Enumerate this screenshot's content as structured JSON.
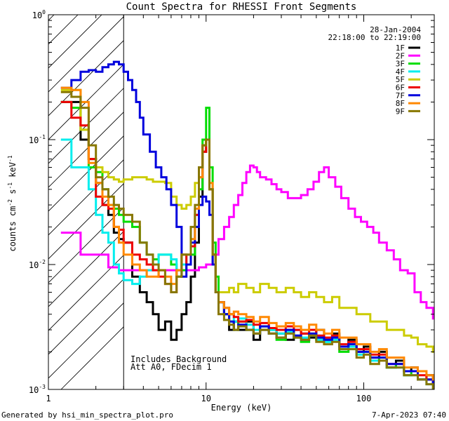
{
  "chart_data": {
    "type": "line",
    "title": "Count Spectra for RHESSI Front Segments",
    "xlabel": "Energy (keV)",
    "ylabel_base": "counts cm",
    "ylabel_exp1": "-2",
    "ylabel_mid": " s",
    "ylabel_exp2": "-1",
    "ylabel_end": " keV",
    "ylabel_exp3": "-1",
    "x_scale": "log",
    "y_scale": "log",
    "xlim": [
      1,
      280
    ],
    "ylim": [
      0.001,
      1
    ],
    "x_ticks": [
      {
        "value": 1,
        "label": "1"
      },
      {
        "value": 10,
        "label": "10"
      },
      {
        "value": 100,
        "label": "100"
      }
    ],
    "y_ticks": [
      {
        "value": 1,
        "base": "10",
        "exp": "0"
      },
      {
        "value": 0.1,
        "base": "10",
        "exp": "-1"
      },
      {
        "value": 0.01,
        "base": "10",
        "exp": "-2"
      },
      {
        "value": 0.001,
        "base": "10",
        "exp": "-3"
      }
    ],
    "date": "28-Jan-2004",
    "time_range": "22:18:00 to 22:19:00",
    "annotation_lines": [
      "Includes Background",
      "Att A0, FDecim 1"
    ],
    "hatched_region_xmax": 3,
    "footer_left": "Generated by hsi_min_spectra_plot.pro",
    "footer_right": "7-Apr-2023 07:40",
    "legend_position": "top-right",
    "series": [
      {
        "name": "1F",
        "color": "#000000",
        "x": [
          1.2,
          1.4,
          1.6,
          1.8,
          2.0,
          2.2,
          2.4,
          2.6,
          2.8,
          3.0,
          3.4,
          3.8,
          4.2,
          4.6,
          5.0,
          5.5,
          6.0,
          6.5,
          7.0,
          7.5,
          8.0,
          8.5,
          9.0,
          9.5,
          10.0,
          10.5,
          11.0,
          11.5,
          12,
          13,
          14,
          15,
          16,
          18,
          20,
          22,
          25,
          28,
          32,
          36,
          40,
          45,
          50,
          56,
          63,
          70,
          80,
          90,
          100,
          110,
          125,
          140,
          160,
          180,
          200,
          220,
          250,
          275
        ],
        "y": [
          0.2,
          0.2,
          0.1,
          0.07,
          0.045,
          0.03,
          0.025,
          0.018,
          0.016,
          0.015,
          0.008,
          0.006,
          0.005,
          0.004,
          0.003,
          0.0035,
          0.0025,
          0.003,
          0.004,
          0.005,
          0.008,
          0.015,
          0.035,
          0.08,
          0.1,
          0.04,
          0.012,
          0.006,
          0.005,
          0.004,
          0.003,
          0.0035,
          0.003,
          0.0035,
          0.0025,
          0.003,
          0.003,
          0.0028,
          0.0025,
          0.003,
          0.0028,
          0.0026,
          0.003,
          0.0025,
          0.0028,
          0.0022,
          0.0025,
          0.002,
          0.0022,
          0.0018,
          0.002,
          0.0015,
          0.0017,
          0.0014,
          0.0015,
          0.0012,
          0.0013,
          0.0011
        ]
      },
      {
        "name": "2F",
        "color": "#ff00ff",
        "x": [
          1.2,
          1.4,
          1.6,
          1.8,
          2.0,
          2.2,
          2.4,
          2.6,
          2.8,
          3.0,
          3.5,
          4.0,
          5.0,
          6.0,
          7.0,
          8.0,
          9.0,
          10.0,
          11.0,
          12.0,
          13.0,
          14.0,
          15.0,
          16.0,
          17.0,
          18.0,
          19.0,
          20.0,
          21.0,
          22.0,
          24.0,
          26.0,
          28.0,
          30.0,
          33.0,
          36.0,
          40.0,
          44.0,
          48.0,
          52.0,
          56.0,
          60.0,
          66.0,
          72.0,
          80.0,
          88.0,
          96.0,
          105.0,
          115.0,
          125.0,
          140.0,
          155.0,
          170.0,
          190.0,
          210.0,
          230.0,
          250.0,
          275.0
        ],
        "y": [
          0.018,
          0.018,
          0.012,
          0.012,
          0.012,
          0.012,
          0.0095,
          0.0095,
          0.009,
          0.009,
          0.009,
          0.009,
          0.009,
          0.009,
          0.009,
          0.009,
          0.0095,
          0.01,
          0.012,
          0.016,
          0.02,
          0.024,
          0.03,
          0.036,
          0.045,
          0.055,
          0.062,
          0.06,
          0.055,
          0.05,
          0.048,
          0.044,
          0.04,
          0.038,
          0.034,
          0.034,
          0.036,
          0.04,
          0.046,
          0.055,
          0.06,
          0.05,
          0.042,
          0.034,
          0.028,
          0.024,
          0.022,
          0.02,
          0.018,
          0.015,
          0.013,
          0.011,
          0.009,
          0.0085,
          0.006,
          0.005,
          0.0045,
          0.0037
        ]
      },
      {
        "name": "3F",
        "color": "#00dd00",
        "x": [
          1.2,
          1.4,
          1.6,
          1.8,
          2.0,
          2.2,
          2.4,
          2.6,
          2.8,
          3.0,
          3.4,
          3.8,
          4.2,
          4.6,
          5.0,
          5.5,
          6.0,
          6.5,
          7.0,
          7.5,
          8.0,
          8.5,
          9.0,
          9.5,
          10.0,
          10.5,
          11.0,
          11.5,
          12,
          13,
          14,
          15,
          16,
          18,
          20,
          22,
          25,
          28,
          32,
          36,
          40,
          45,
          50,
          56,
          63,
          70,
          80,
          90,
          100,
          110,
          125,
          140,
          160,
          180,
          200,
          220,
          250,
          275
        ],
        "y": [
          0.2,
          0.18,
          0.12,
          0.06,
          0.055,
          0.04,
          0.03,
          0.028,
          0.025,
          0.022,
          0.02,
          0.015,
          0.012,
          0.011,
          0.012,
          0.012,
          0.01,
          0.008,
          0.009,
          0.01,
          0.012,
          0.02,
          0.04,
          0.1,
          0.18,
          0.06,
          0.015,
          0.008,
          0.005,
          0.004,
          0.0035,
          0.003,
          0.0035,
          0.003,
          0.0028,
          0.0032,
          0.0028,
          0.0025,
          0.003,
          0.0026,
          0.0024,
          0.0028,
          0.0025,
          0.0024,
          0.0026,
          0.002,
          0.0023,
          0.0019,
          0.002,
          0.0017,
          0.0018,
          0.0015,
          0.0016,
          0.0013,
          0.0014,
          0.0012,
          0.0012,
          0.0011
        ]
      },
      {
        "name": "4F",
        "color": "#00eeee",
        "x": [
          1.2,
          1.4,
          1.6,
          1.8,
          2.0,
          2.2,
          2.4,
          2.6,
          2.8,
          3.0,
          3.4,
          3.8,
          4.2,
          4.6,
          5.0,
          5.5,
          6.0,
          6.5,
          7.0,
          7.5,
          8.0,
          8.5,
          9.0,
          9.5,
          10.0,
          10.5,
          11.0,
          11.5,
          12,
          13,
          14,
          15,
          16,
          18,
          20,
          22,
          25,
          28,
          32,
          36,
          40,
          45,
          50,
          56,
          63,
          70,
          80,
          90,
          100,
          110,
          125,
          140,
          160,
          180,
          200,
          220,
          250,
          275
        ],
        "y": [
          0.1,
          0.06,
          0.06,
          0.04,
          0.025,
          0.018,
          0.015,
          0.01,
          0.0085,
          0.0075,
          0.007,
          0.008,
          0.009,
          0.01,
          0.012,
          0.012,
          0.011,
          0.009,
          0.01,
          0.012,
          0.016,
          0.025,
          0.05,
          0.09,
          0.1,
          0.04,
          0.01,
          0.006,
          0.005,
          0.0045,
          0.004,
          0.0035,
          0.0037,
          0.0033,
          0.003,
          0.0032,
          0.003,
          0.0028,
          0.0029,
          0.0027,
          0.0026,
          0.0027,
          0.0025,
          0.0024,
          0.0025,
          0.0021,
          0.0022,
          0.0019,
          0.002,
          0.0017,
          0.0017,
          0.0015,
          0.0015,
          0.0013,
          0.0013,
          0.0012,
          0.0011,
          0.001
        ]
      },
      {
        "name": "5F",
        "color": "#cccc00",
        "x": [
          1.2,
          1.4,
          1.6,
          1.8,
          2.0,
          2.2,
          2.4,
          2.6,
          2.8,
          3.0,
          3.4,
          3.8,
          4.2,
          4.6,
          5.0,
          5.5,
          6.0,
          6.5,
          7.0,
          7.5,
          8.0,
          8.5,
          9.0,
          9.5,
          10.0,
          10.5,
          11.0,
          11.5,
          12,
          13,
          14,
          15,
          16,
          18,
          20,
          22,
          25,
          28,
          32,
          36,
          40,
          45,
          50,
          56,
          63,
          70,
          80,
          90,
          100,
          110,
          125,
          140,
          160,
          180,
          200,
          220,
          250,
          275
        ],
        "y": [
          0.25,
          0.25,
          0.12,
          0.07,
          0.06,
          0.055,
          0.05,
          0.048,
          0.046,
          0.048,
          0.05,
          0.05,
          0.048,
          0.046,
          0.046,
          0.045,
          0.035,
          0.03,
          0.028,
          0.03,
          0.035,
          0.045,
          0.06,
          0.09,
          0.1,
          0.04,
          0.01,
          0.006,
          0.006,
          0.006,
          0.0065,
          0.006,
          0.007,
          0.0065,
          0.006,
          0.007,
          0.0065,
          0.006,
          0.0065,
          0.006,
          0.0055,
          0.006,
          0.0055,
          0.005,
          0.0055,
          0.0045,
          0.0045,
          0.004,
          0.004,
          0.0035,
          0.0035,
          0.003,
          0.003,
          0.0027,
          0.0026,
          0.0023,
          0.0022,
          0.002
        ]
      },
      {
        "name": "6F",
        "color": "#ee0000",
        "x": [
          1.2,
          1.4,
          1.6,
          1.8,
          2.0,
          2.2,
          2.4,
          2.6,
          2.8,
          3.0,
          3.4,
          3.8,
          4.2,
          4.6,
          5.0,
          5.5,
          6.0,
          6.5,
          7.0,
          7.5,
          8.0,
          8.5,
          9.0,
          9.5,
          10.0,
          10.5,
          11.0,
          11.5,
          12,
          13,
          14,
          15,
          16,
          18,
          20,
          22,
          25,
          28,
          32,
          36,
          40,
          45,
          50,
          56,
          63,
          70,
          80,
          90,
          100,
          110,
          125,
          140,
          160,
          180,
          200,
          220,
          250,
          275
        ],
        "y": [
          0.2,
          0.15,
          0.13,
          0.07,
          0.035,
          0.03,
          0.028,
          0.02,
          0.019,
          0.015,
          0.012,
          0.011,
          0.01,
          0.009,
          0.008,
          0.007,
          0.006,
          0.009,
          0.012,
          0.01,
          0.014,
          0.025,
          0.05,
          0.08,
          0.1,
          0.04,
          0.012,
          0.006,
          0.005,
          0.0045,
          0.004,
          0.0038,
          0.0035,
          0.0036,
          0.0033,
          0.0034,
          0.0031,
          0.003,
          0.0032,
          0.003,
          0.0028,
          0.003,
          0.0027,
          0.0026,
          0.0027,
          0.0023,
          0.0024,
          0.0021,
          0.0021,
          0.0019,
          0.0019,
          0.0016,
          0.0016,
          0.0014,
          0.0014,
          0.0013,
          0.0012,
          0.0011
        ]
      },
      {
        "name": "7F",
        "color": "#0000dd",
        "x": [
          1.2,
          1.4,
          1.6,
          1.8,
          2.0,
          2.2,
          2.4,
          2.6,
          2.8,
          3.0,
          3.2,
          3.4,
          3.6,
          3.8,
          4.0,
          4.4,
          4.8,
          5.2,
          5.6,
          6.0,
          6.5,
          7.0,
          7.5,
          8.0,
          8.5,
          9.0,
          9.5,
          10.0,
          10.5,
          11.0,
          11.5,
          12,
          13,
          14,
          15,
          16,
          18,
          20,
          22,
          25,
          28,
          32,
          36,
          40,
          45,
          50,
          56,
          63,
          70,
          80,
          90,
          100,
          110,
          125,
          140,
          160,
          180,
          200,
          220,
          250,
          275
        ],
        "y": [
          0.26,
          0.3,
          0.35,
          0.36,
          0.35,
          0.38,
          0.4,
          0.42,
          0.4,
          0.35,
          0.3,
          0.25,
          0.2,
          0.15,
          0.11,
          0.08,
          0.06,
          0.05,
          0.04,
          0.03,
          0.02,
          0.008,
          0.01,
          0.015,
          0.02,
          0.03,
          0.035,
          0.032,
          0.025,
          0.01,
          0.006,
          0.005,
          0.004,
          0.0035,
          0.003,
          0.0033,
          0.003,
          0.0028,
          0.0032,
          0.0028,
          0.0026,
          0.003,
          0.0027,
          0.0025,
          0.0028,
          0.0026,
          0.0025,
          0.0026,
          0.0022,
          0.0023,
          0.002,
          0.002,
          0.0018,
          0.0018,
          0.0016,
          0.0016,
          0.0014,
          0.0014,
          0.0012,
          0.0012,
          0.0011
        ]
      },
      {
        "name": "8F",
        "color": "#ff8800",
        "x": [
          1.2,
          1.4,
          1.6,
          1.8,
          2.0,
          2.2,
          2.4,
          2.6,
          2.8,
          3.0,
          3.4,
          3.8,
          4.2,
          4.6,
          5.0,
          5.5,
          6.0,
          6.5,
          7.0,
          7.5,
          8.0,
          8.5,
          9.0,
          9.5,
          10.0,
          10.5,
          11.0,
          11.5,
          12,
          13,
          14,
          15,
          16,
          18,
          20,
          22,
          25,
          28,
          32,
          36,
          40,
          45,
          50,
          56,
          63,
          70,
          80,
          90,
          100,
          110,
          125,
          140,
          160,
          180,
          200,
          220,
          250,
          275
        ],
        "y": [
          0.26,
          0.25,
          0.2,
          0.065,
          0.045,
          0.035,
          0.03,
          0.02,
          0.015,
          0.012,
          0.01,
          0.009,
          0.008,
          0.008,
          0.009,
          0.008,
          0.007,
          0.009,
          0.012,
          0.012,
          0.016,
          0.028,
          0.05,
          0.09,
          0.1,
          0.045,
          0.012,
          0.006,
          0.005,
          0.0045,
          0.004,
          0.0042,
          0.004,
          0.0038,
          0.0035,
          0.0038,
          0.0034,
          0.0032,
          0.0034,
          0.0032,
          0.003,
          0.0033,
          0.003,
          0.0028,
          0.003,
          0.0026,
          0.0026,
          0.0023,
          0.0023,
          0.002,
          0.0021,
          0.0018,
          0.0018,
          0.0015,
          0.0015,
          0.0014,
          0.0013,
          0.0012
        ]
      },
      {
        "name": "9F",
        "color": "#887700",
        "x": [
          1.2,
          1.4,
          1.6,
          1.8,
          2.0,
          2.2,
          2.4,
          2.6,
          2.8,
          3.0,
          3.4,
          3.8,
          4.2,
          4.6,
          5.0,
          5.5,
          6.0,
          6.5,
          7.0,
          7.5,
          8.0,
          8.5,
          9.0,
          9.5,
          10.0,
          10.5,
          11.0,
          11.5,
          12,
          13,
          14,
          15,
          16,
          18,
          20,
          22,
          25,
          28,
          32,
          36,
          40,
          45,
          50,
          56,
          63,
          70,
          80,
          90,
          100,
          110,
          125,
          140,
          160,
          180,
          200,
          220,
          250,
          275
        ],
        "y": [
          0.24,
          0.22,
          0.18,
          0.09,
          0.05,
          0.04,
          0.035,
          0.03,
          0.028,
          0.025,
          0.022,
          0.015,
          0.012,
          0.01,
          0.009,
          0.007,
          0.006,
          0.008,
          0.012,
          0.012,
          0.02,
          0.03,
          0.06,
          0.09,
          0.1,
          0.04,
          0.012,
          0.006,
          0.004,
          0.0036,
          0.0033,
          0.003,
          0.0032,
          0.003,
          0.0028,
          0.003,
          0.0028,
          0.0026,
          0.0028,
          0.0026,
          0.0025,
          0.0027,
          0.0024,
          0.0023,
          0.0024,
          0.0021,
          0.0021,
          0.0018,
          0.0019,
          0.0016,
          0.0017,
          0.0015,
          0.0015,
          0.0013,
          0.0013,
          0.0012,
          0.0011,
          0.001
        ]
      }
    ]
  }
}
